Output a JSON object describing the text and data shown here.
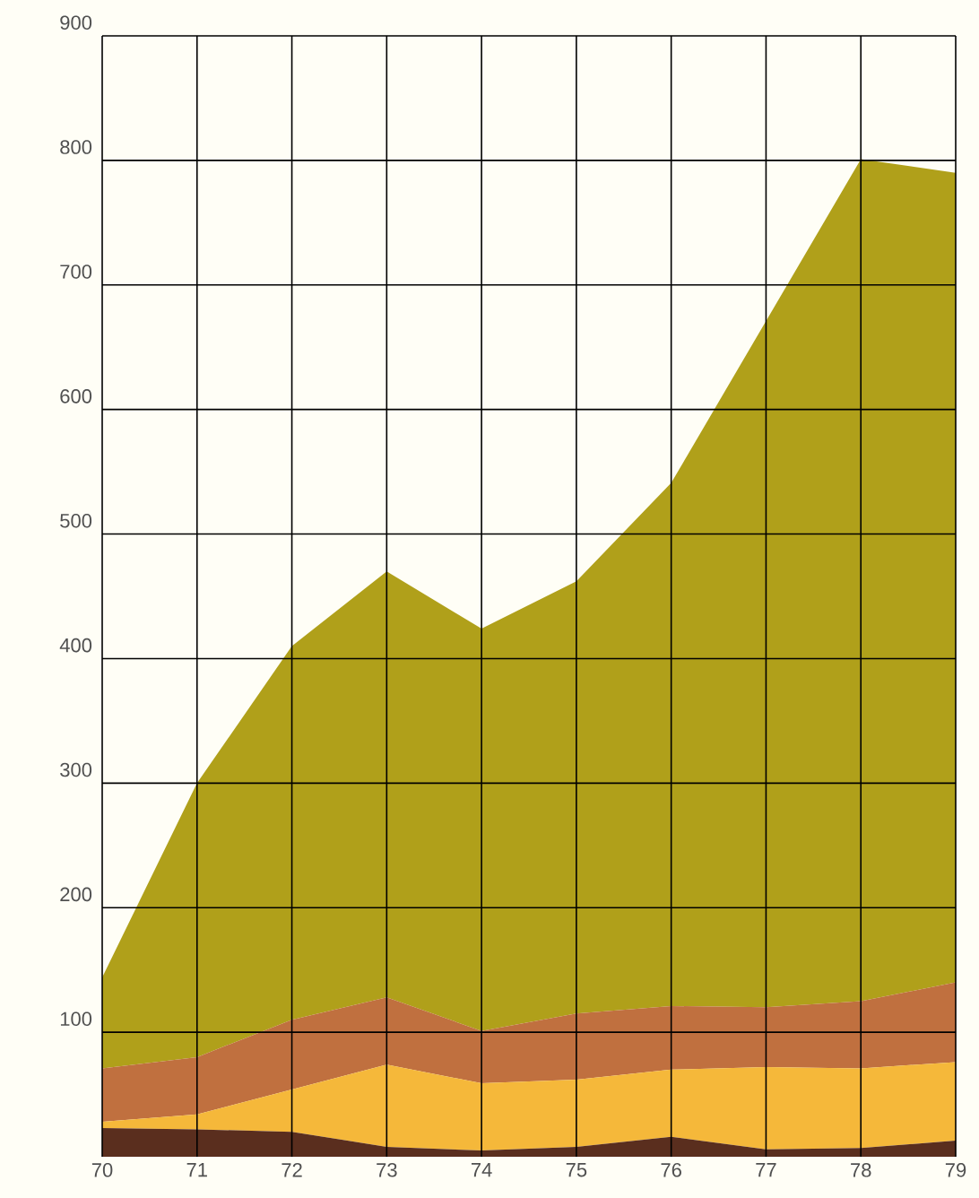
{
  "chart_data": {
    "type": "area",
    "stacked": true,
    "x": [
      70,
      71,
      72,
      73,
      74,
      75,
      76,
      77,
      78,
      79
    ],
    "series": [
      {
        "color": "#5a2e1e",
        "values": [
          23,
          22,
          20,
          8,
          5,
          8,
          16,
          6,
          7,
          13
        ]
      },
      {
        "color": "#f5b83a",
        "values": [
          5,
          12,
          34,
          66,
          54,
          54,
          54,
          66,
          64,
          63
        ]
      },
      {
        "color": "#c0703f",
        "values": [
          43,
          46,
          56,
          54,
          42,
          53,
          51,
          48,
          54,
          64
        ]
      },
      {
        "color": "#b0a01a",
        "values": [
          73,
          220,
          300,
          342,
          323,
          347,
          420,
          551,
          676,
          650
        ]
      }
    ],
    "xlim": [
      70,
      79
    ],
    "xticks": [
      70,
      71,
      72,
      73,
      74,
      75,
      76,
      77,
      78,
      79
    ],
    "ylim": [
      0,
      900
    ],
    "yticks": [
      100,
      200,
      300,
      400,
      500,
      600,
      700,
      800,
      900
    ],
    "grid": true
  }
}
